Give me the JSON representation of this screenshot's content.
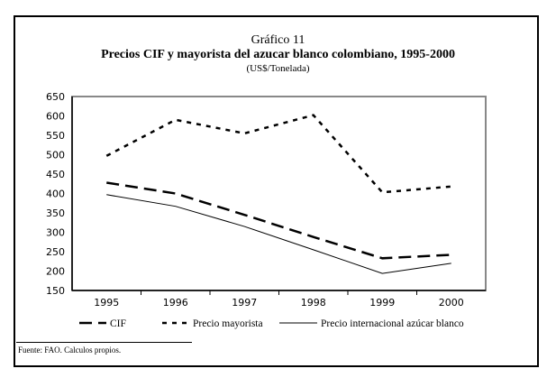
{
  "chart_data": {
    "type": "line",
    "title": "Gráfico 11",
    "subtitle": "Precios CIF y mayorista del azucar blanco colombiano, 1995-2000",
    "units": "(US$/Tonelada)",
    "xlabel": "",
    "ylabel": "",
    "categories": [
      "1995",
      "1996",
      "1997",
      "1998",
      "1999",
      "2000"
    ],
    "ylim": [
      150,
      650
    ],
    "yticks": [
      150,
      200,
      250,
      300,
      350,
      400,
      450,
      500,
      550,
      600,
      650
    ],
    "legend_position": "bottom",
    "series": [
      {
        "name": "CIF",
        "style": "dashed",
        "values": [
          428,
          400,
          345,
          288,
          233,
          242
        ]
      },
      {
        "name": "Precio mayorista",
        "style": "dotted",
        "values": [
          497,
          590,
          555,
          602,
          403,
          418
        ]
      },
      {
        "name": "Precio internacional azúcar blanco",
        "style": "solid",
        "values": [
          397,
          367,
          315,
          255,
          194,
          220
        ]
      }
    ]
  },
  "source": "Fuente: FAO. Calculos propios."
}
